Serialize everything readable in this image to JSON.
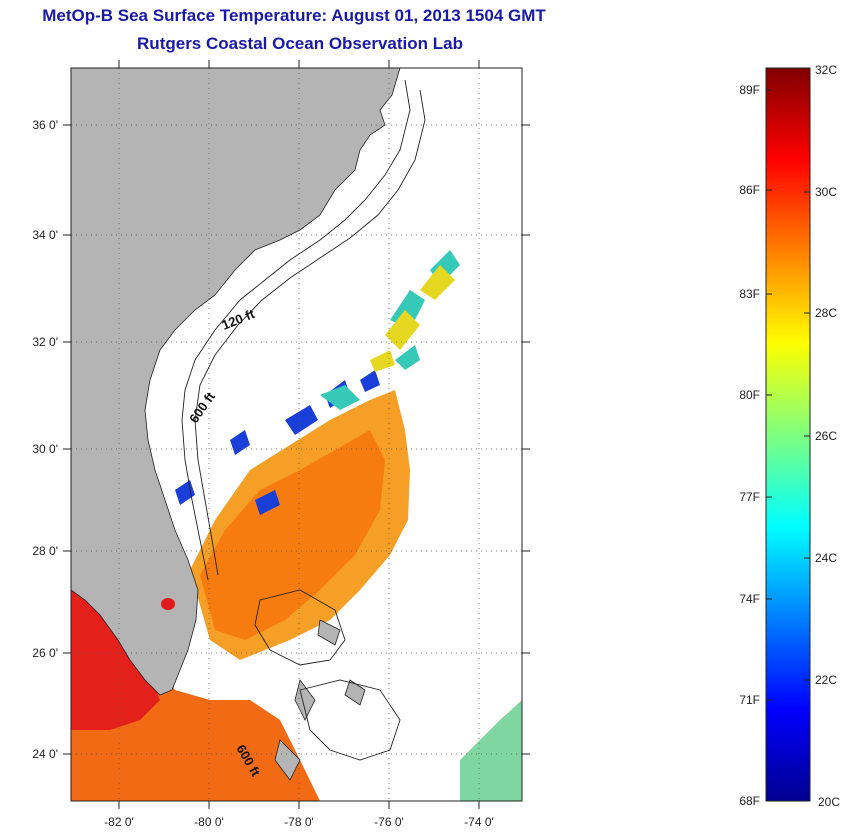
{
  "title": "MetOp-B Sea Surface Temperature:  August 01, 2013 1504 GMT",
  "subtitle": "Rutgers Coastal Ocean Observation Lab",
  "map": {
    "lat_labels": [
      "36 0'",
      "34 0'",
      "32 0'",
      "30 0'",
      "28 0'",
      "26 0'",
      "24 0'"
    ],
    "lon_labels": [
      "-82 0'",
      "-80 0'",
      "-78 0'",
      "-76 0'",
      "-74 0'"
    ],
    "contour_labels": [
      "120 ft",
      "600 ft",
      "600 ft"
    ],
    "colors": {
      "land": "#b4b4b4",
      "ocean_nodata": "#ffffff",
      "title": "#1a1aa6"
    }
  },
  "colorbar": {
    "fahrenheit_labels": [
      "89F",
      "86F",
      "83F",
      "80F",
      "77F",
      "74F",
      "71F",
      "68F"
    ],
    "celsius_labels": [
      "32C",
      "30C",
      "28C",
      "26C",
      "24C",
      "22C",
      "20C"
    ],
    "range_c": [
      20,
      32
    ],
    "colormap": "jet"
  }
}
